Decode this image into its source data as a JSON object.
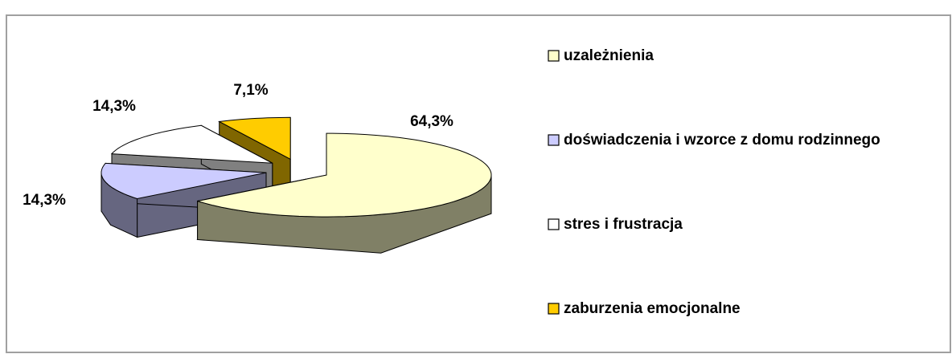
{
  "chart_data": {
    "type": "pie3d",
    "categories": [
      "uzależnienia",
      "doświadczenia i wzorce z domu rodzinnego",
      "stres i frustracja",
      "zaburzenia emocjonalne"
    ],
    "values": [
      64.3,
      14.3,
      14.3,
      7.1
    ],
    "value_labels": [
      "64,3%",
      "14,3%",
      "14,3%",
      "7,1%"
    ],
    "colors": [
      "#FFFFCC",
      "#CCCCFF",
      "#FFFFFF",
      "#FFCC00"
    ],
    "legend": "right"
  }
}
